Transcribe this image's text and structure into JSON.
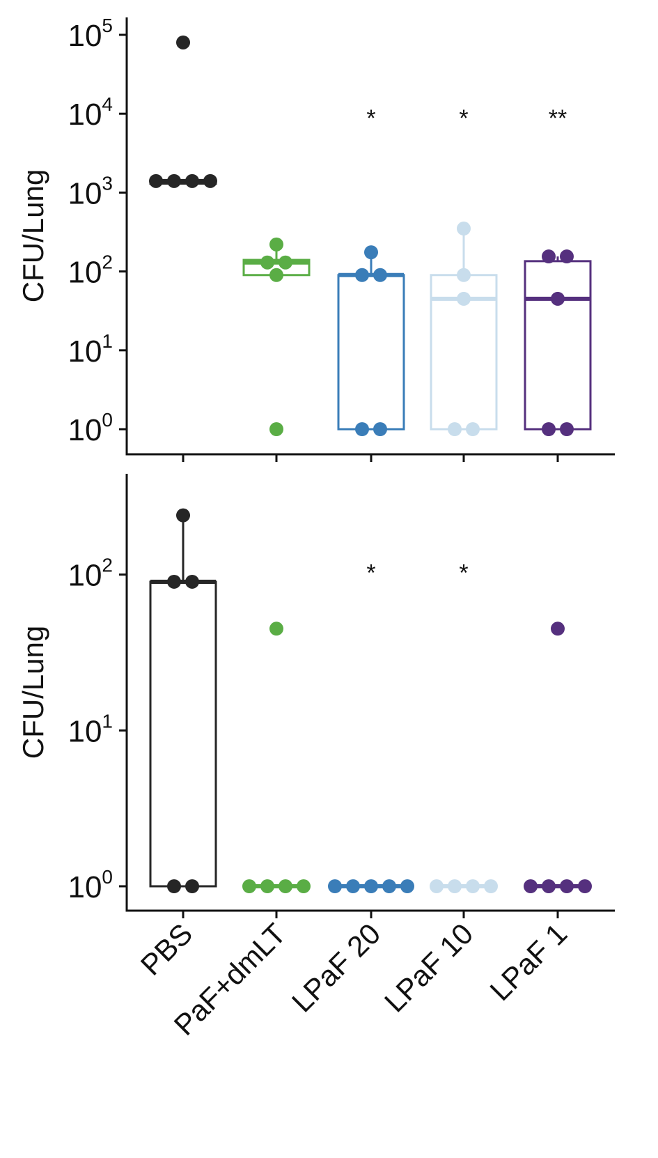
{
  "chart_data": [
    {
      "type": "box",
      "panel": "top",
      "title": "",
      "xlabel": "",
      "ylabel": "CFU/Lung",
      "yscale": "log",
      "ylim": [
        1,
        100000
      ],
      "y_ticks": [
        {
          "value": 1,
          "base": "10",
          "exp": "0"
        },
        {
          "value": 10,
          "base": "10",
          "exp": "1"
        },
        {
          "value": 100,
          "base": "10",
          "exp": "2"
        },
        {
          "value": 1000,
          "base": "10",
          "exp": "3"
        },
        {
          "value": 10000,
          "base": "10",
          "exp": "4"
        },
        {
          "value": 100000,
          "base": "10",
          "exp": "5"
        }
      ],
      "categories": [
        "PBS",
        "PaF+dmLT",
        "LPaF 20",
        "LPaF 10",
        "LPaF 1"
      ],
      "colors": [
        "#262626",
        "#5aad45",
        "#3a7db8",
        "#c8ddec",
        "#55307e"
      ],
      "boxes": [
        {
          "q1": 1300,
          "median": 1400,
          "q3": 1400,
          "whisker_low": 1300,
          "whisker_high": 1400
        },
        {
          "q1": 90,
          "median": 130,
          "q3": 140,
          "whisker_low": 90,
          "whisker_high": 210
        },
        {
          "q1": 1,
          "median": 90,
          "q3": 90,
          "whisker_low": 1,
          "whisker_high": 175
        },
        {
          "q1": 1,
          "median": 45,
          "q3": 90,
          "whisker_low": 1,
          "whisker_high": 350
        },
        {
          "q1": 1,
          "median": 45,
          "q3": 135,
          "whisker_low": 1,
          "whisker_high": 155
        }
      ],
      "points": [
        [
          {
            "y": 80000,
            "offset": 0
          },
          {
            "y": 1400,
            "offset": -1.5
          },
          {
            "y": 1400,
            "offset": -0.5
          },
          {
            "y": 1400,
            "offset": 0.5
          },
          {
            "y": 1400,
            "offset": 1.5
          }
        ],
        [
          {
            "y": 220,
            "offset": 0
          },
          {
            "y": 130,
            "offset": -0.5
          },
          {
            "y": 130,
            "offset": 0.5
          },
          {
            "y": 90,
            "offset": 0
          },
          {
            "y": 1,
            "offset": 0
          }
        ],
        [
          {
            "y": 175,
            "offset": 0
          },
          {
            "y": 90,
            "offset": -0.5
          },
          {
            "y": 90,
            "offset": 0.5
          },
          {
            "y": 1,
            "offset": -0.5
          },
          {
            "y": 1,
            "offset": 0.5
          }
        ],
        [
          {
            "y": 350,
            "offset": 0
          },
          {
            "y": 90,
            "offset": 0
          },
          {
            "y": 45,
            "offset": 0
          },
          {
            "y": 1,
            "offset": -0.5
          },
          {
            "y": 1,
            "offset": 0.5
          }
        ],
        [
          {
            "y": 155,
            "offset": -0.5
          },
          {
            "y": 155,
            "offset": 0.5
          },
          {
            "y": 45,
            "offset": 0
          },
          {
            "y": 1,
            "offset": -0.5
          },
          {
            "y": 1,
            "offset": 0.5
          }
        ]
      ],
      "annotations": [
        {
          "category": "LPaF 20",
          "text": "*",
          "y": 10000
        },
        {
          "category": "LPaF 10",
          "text": "*",
          "y": 10000
        },
        {
          "category": "LPaF 1",
          "text": "**",
          "y": 10000
        }
      ]
    },
    {
      "type": "box",
      "panel": "bottom",
      "title": "",
      "xlabel": "",
      "ylabel": "CFU/Lung",
      "yscale": "log",
      "ylim": [
        1,
        300
      ],
      "y_ticks": [
        {
          "value": 1,
          "base": "10",
          "exp": "0"
        },
        {
          "value": 10,
          "base": "10",
          "exp": "1"
        },
        {
          "value": 100,
          "base": "10",
          "exp": "2"
        }
      ],
      "categories": [
        "PBS",
        "PaF+dmLT",
        "LPaF 20",
        "LPaF 10",
        "LPaF 1"
      ],
      "colors": [
        "#262626",
        "#5aad45",
        "#3a7db8",
        "#c8ddec",
        "#55307e"
      ],
      "boxes": [
        {
          "q1": 1,
          "median": 90,
          "q3": 90,
          "whisker_low": 1,
          "whisker_high": 240
        },
        {
          "q1": 1,
          "median": 1,
          "q3": 1,
          "whisker_low": 1,
          "whisker_high": 1
        },
        {
          "q1": 1,
          "median": 1,
          "q3": 1,
          "whisker_low": 1,
          "whisker_high": 1
        },
        {
          "q1": 1,
          "median": 1,
          "q3": 1,
          "whisker_low": 1,
          "whisker_high": 1
        },
        {
          "q1": 1,
          "median": 1,
          "q3": 1,
          "whisker_low": 1,
          "whisker_high": 1
        }
      ],
      "points": [
        [
          {
            "y": 240,
            "offset": 0
          },
          {
            "y": 90,
            "offset": -0.5
          },
          {
            "y": 90,
            "offset": 0.5
          },
          {
            "y": 1,
            "offset": -0.5
          },
          {
            "y": 1,
            "offset": 0.5
          }
        ],
        [
          {
            "y": 45,
            "offset": 0
          },
          {
            "y": 1,
            "offset": -1.5
          },
          {
            "y": 1,
            "offset": -0.5
          },
          {
            "y": 1,
            "offset": 0.5
          },
          {
            "y": 1,
            "offset": 1.5
          }
        ],
        [
          {
            "y": 1,
            "offset": -2
          },
          {
            "y": 1,
            "offset": -1
          },
          {
            "y": 1,
            "offset": 0
          },
          {
            "y": 1,
            "offset": 1
          },
          {
            "y": 1,
            "offset": 2
          }
        ],
        [
          {
            "y": 1,
            "offset": -1.5
          },
          {
            "y": 1,
            "offset": -0.5
          },
          {
            "y": 1,
            "offset": 0.5
          },
          {
            "y": 1,
            "offset": 1.5
          }
        ],
        [
          {
            "y": 45,
            "offset": 0
          },
          {
            "y": 1,
            "offset": -1.5
          },
          {
            "y": 1,
            "offset": -0.5
          },
          {
            "y": 1,
            "offset": 0.5
          },
          {
            "y": 1,
            "offset": 1.5
          }
        ]
      ],
      "annotations": [
        {
          "category": "LPaF 20",
          "text": "*",
          "y": 110
        },
        {
          "category": "LPaF 10",
          "text": "*",
          "y": 110
        }
      ]
    }
  ]
}
